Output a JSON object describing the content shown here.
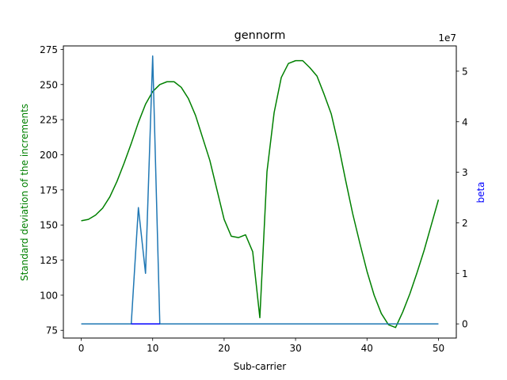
{
  "chart_data": {
    "type": "line",
    "title": "gennorm",
    "xlabel": "Sub-carrier",
    "ylabel_left": "Standard deviation of the increments",
    "ylabel_right": "beta",
    "right_axis_offset": "1e7",
    "xlim": [
      -2.5,
      52.5
    ],
    "ylim_left": [
      69.5,
      277.5
    ],
    "ylim_right": [
      -2800000,
      55000000
    ],
    "xticks": [
      0,
      10,
      20,
      30,
      40,
      50
    ],
    "xtick_labels": [
      "0",
      "10",
      "20",
      "30",
      "40",
      "50"
    ],
    "yticks_left": [
      75,
      100,
      125,
      150,
      175,
      200,
      225,
      250,
      275
    ],
    "ytick_labels_left": [
      "75",
      "100",
      "125",
      "150",
      "175",
      "200",
      "225",
      "250",
      "275"
    ],
    "yticks_right": [
      0,
      10000000,
      20000000,
      30000000,
      40000000,
      50000000
    ],
    "ytick_labels_right": [
      "0",
      "1",
      "2",
      "3",
      "4",
      "5"
    ],
    "colors": {
      "std_line": "#008000",
      "beta_line": "#1f77b4",
      "beta_flat": "#0000ff",
      "left_label": "#008000",
      "right_label": "#0000ff",
      "axis": "#000000"
    },
    "series": [
      {
        "name": "Standard deviation of the increments",
        "axis": "left",
        "x": [
          0,
          1,
          2,
          3,
          4,
          5,
          6,
          7,
          8,
          9,
          10,
          11,
          12,
          13,
          14,
          15,
          16,
          17,
          18,
          19,
          20,
          21,
          22,
          23,
          24,
          25,
          26,
          27,
          28,
          29,
          30,
          31,
          32,
          33,
          34,
          35,
          36,
          37,
          38,
          39,
          40,
          41,
          42,
          43,
          44,
          45,
          46,
          47,
          48,
          49,
          50
        ],
        "values": [
          153,
          154,
          157,
          162,
          170,
          181,
          194,
          208,
          223,
          236,
          245,
          250,
          252,
          252,
          248,
          240,
          228,
          212,
          196,
          175,
          154,
          142,
          141,
          143,
          131,
          84,
          188,
          230,
          255,
          265,
          267,
          267,
          262,
          256,
          243,
          229,
          207,
          182,
          158,
          137,
          117,
          100,
          87,
          79,
          77,
          88,
          101,
          116,
          132,
          150,
          168
        ]
      },
      {
        "name": "beta",
        "axis": "right",
        "x": [
          0,
          1,
          2,
          3,
          4,
          5,
          6,
          7,
          8,
          9,
          10,
          11,
          12,
          13,
          14,
          15,
          16,
          17,
          18,
          19,
          20,
          21,
          22,
          23,
          24,
          25,
          26,
          27,
          28,
          29,
          30,
          31,
          32,
          33,
          34,
          35,
          36,
          37,
          38,
          39,
          40,
          41,
          42,
          43,
          44,
          45,
          46,
          47,
          48,
          49,
          50
        ],
        "values": [
          0,
          0,
          0,
          0,
          0,
          0,
          0,
          0,
          23000000,
          10000000,
          53000000,
          0,
          0,
          0,
          0,
          0,
          0,
          0,
          0,
          0,
          0,
          0,
          0,
          0,
          0,
          0,
          0,
          0,
          0,
          0,
          0,
          0,
          0,
          0,
          0,
          0,
          0,
          0,
          0,
          0,
          0,
          0,
          0,
          0,
          0,
          0,
          0,
          0,
          0,
          0,
          0
        ]
      }
    ]
  }
}
